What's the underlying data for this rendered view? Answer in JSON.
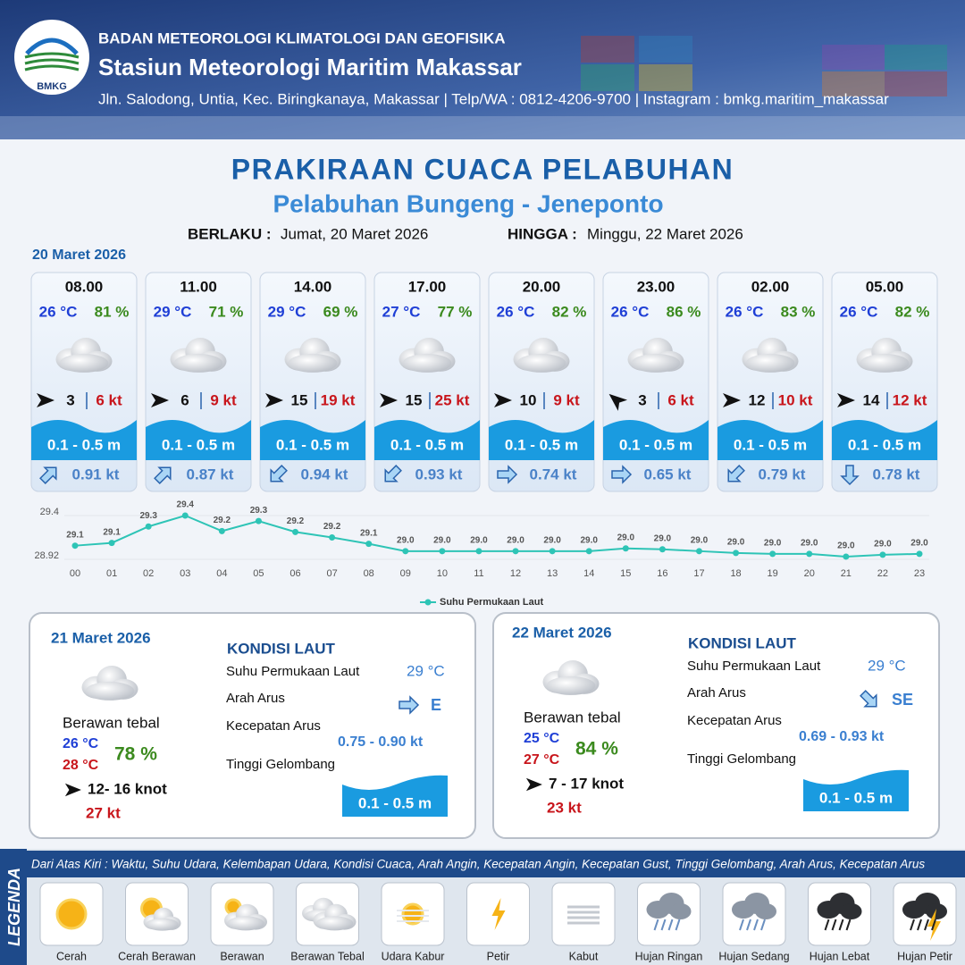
{
  "header": {
    "agency": "BADAN METEOROLOGI KLIMATOLOGI DAN GEOFISIKA",
    "station": "Stasiun Meteorologi Maritim Makassar",
    "address": "Jln. Salodong, Untia, Kec. Biringkanaya, Makassar | Telp/WA : 0812-4206-9700 | Instagram : bmkg.maritim_makassar",
    "logo": "BMKG"
  },
  "title": "PRAKIRAAN CUACA PELABUHAN",
  "subtitle": "Pelabuhan Bungeng - Jeneponto",
  "validity": {
    "from_label": "BERLAKU :",
    "from": "Jumat, 20 Maret 2026",
    "to_label": "HINGGA :",
    "to": "Minggu, 22 Maret 2026"
  },
  "day1": {
    "date": "20 Maret 2026",
    "slots": [
      {
        "time": "08.00",
        "temp": "26 °C",
        "rh": "81 %",
        "wind": "3",
        "gust": "6 kt",
        "wave": "0.1 - 0.5 m",
        "current": "0.91 kt"
      },
      {
        "time": "11.00",
        "temp": "29 °C",
        "rh": "71 %",
        "wind": "6",
        "gust": "9 kt",
        "wave": "0.1 - 0.5 m",
        "current": "0.87 kt"
      },
      {
        "time": "14.00",
        "temp": "29 °C",
        "rh": "69 %",
        "wind": "15",
        "gust": "19 kt",
        "wave": "0.1 - 0.5 m",
        "current": "0.94 kt"
      },
      {
        "time": "17.00",
        "temp": "27 °C",
        "rh": "77 %",
        "wind": "15",
        "gust": "25 kt",
        "wave": "0.1 - 0.5 m",
        "current": "0.93 kt"
      },
      {
        "time": "20.00",
        "temp": "26 °C",
        "rh": "82 %",
        "wind": "10",
        "gust": "9 kt",
        "wave": "0.1 - 0.5 m",
        "current": "0.74 kt"
      },
      {
        "time": "23.00",
        "temp": "26 °C",
        "rh": "86 %",
        "wind": "3",
        "gust": "6 kt",
        "wave": "0.1 - 0.5 m",
        "current": "0.65 kt"
      },
      {
        "time": "02.00",
        "temp": "26 °C",
        "rh": "83 %",
        "wind": "12",
        "gust": "10 kt",
        "wave": "0.1 - 0.5 m",
        "current": "0.79 kt"
      },
      {
        "time": "05.00",
        "temp": "26 °C",
        "rh": "82 %",
        "wind": "14",
        "gust": "12 kt",
        "wave": "0.1 - 0.5 m",
        "current": "0.78 kt"
      }
    ]
  },
  "chart_data": {
    "type": "line",
    "categories": [
      "00",
      "01",
      "02",
      "03",
      "04",
      "05",
      "06",
      "07",
      "08",
      "09",
      "10",
      "11",
      "12",
      "13",
      "14",
      "15",
      "16",
      "17",
      "18",
      "19",
      "20",
      "21",
      "22",
      "23"
    ],
    "series": [
      {
        "name": "Suhu Permukaan Laut",
        "color": "#2ec4b6",
        "values": [
          29.07,
          29.1,
          29.28,
          29.4,
          29.23,
          29.34,
          29.22,
          29.16,
          29.09,
          29.01,
          29.01,
          29.01,
          29.01,
          29.01,
          29.01,
          29.04,
          29.03,
          29.01,
          28.99,
          28.98,
          28.98,
          28.95,
          28.97,
          28.98
        ],
        "value_labels": [
          "29.1",
          "29.1",
          "29.3",
          "29.4",
          "29.2",
          "29.3",
          "29.2",
          "29.2",
          "29.1",
          "29.0",
          "29.0",
          "29.0",
          "29.0",
          "29.0",
          "29.0",
          "29.0",
          "29.0",
          "29.0",
          "29.0",
          "29.0",
          "29.0",
          "29.0",
          "29.0",
          "29.0"
        ]
      }
    ],
    "ylim": [
      28.92,
      29.4
    ],
    "yticks": [
      28.92,
      29.4
    ],
    "legend": "bottom"
  },
  "day2": {
    "date": "21 Maret 2026",
    "condition": "Berawan tebal",
    "temp_min": "26 °C",
    "temp_max": "28 °C",
    "rh": "78 %",
    "wind": "12- 16 knot",
    "gust": "27 kt",
    "sea": {
      "heading": "KONDISI LAUT",
      "sst_label": "Suhu Permukaan Laut",
      "sst": "29 °C",
      "current_dir_label": "Arah Arus",
      "current_dir": "E",
      "current_speed_label": "Kecepatan Arus",
      "current_speed": "0.75 - 0.90 kt",
      "wave_label": "Tinggi Gelombang",
      "wave": "0.1 - 0.5 m"
    }
  },
  "day3": {
    "date": "22 Maret 2026",
    "condition": "Berawan tebal",
    "temp_min": "25 °C",
    "temp_max": "27 °C",
    "rh": "84 %",
    "wind": "7 - 17 knot",
    "gust": "23 kt",
    "sea": {
      "heading": "KONDISI LAUT",
      "sst_label": "Suhu Permukaan Laut",
      "sst": "29 °C",
      "current_dir_label": "Arah Arus",
      "current_dir": "SE",
      "current_speed_label": "Kecepatan Arus",
      "current_speed": "0.69 - 0.93 kt",
      "wave_label": "Tinggi Gelombang",
      "wave": "0.1 - 0.5 m"
    }
  },
  "legend": {
    "title": "LEGENDA",
    "description": "Dari Atas Kiri : Waktu, Suhu Udara, Kelembapan Udara, Kondisi Cuaca, Arah Angin, Kecepatan Angin, Kecepatan Gust, Tinggi Gelombang, Arah Arus, Kecepatan Arus",
    "items": [
      "Cerah",
      "Cerah Berawan",
      "Berawan",
      "Berawan Tebal",
      "Udara Kabur",
      "Petir",
      "Kabut",
      "Hujan Ringan",
      "Hujan Sedang",
      "Hujan Lebat",
      "Hujan Petir"
    ]
  }
}
